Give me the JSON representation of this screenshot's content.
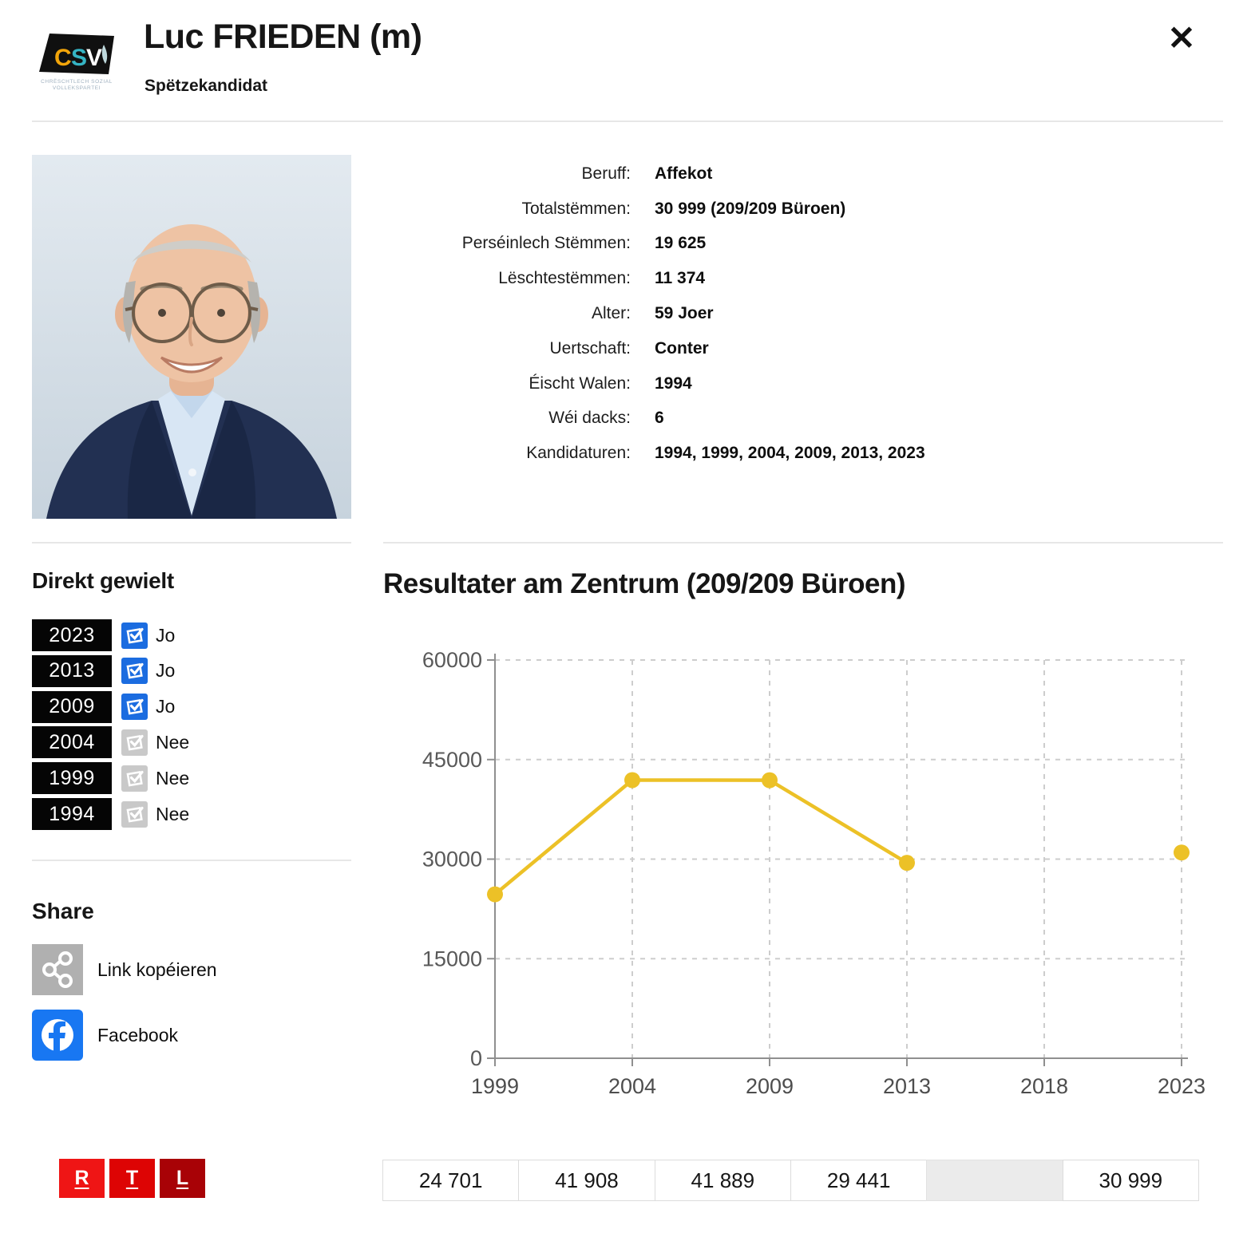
{
  "header": {
    "title": "Luc FRIEDEN (m)",
    "subtitle": "Spëtzekandidat",
    "close_glyph": "✕",
    "party": {
      "letters": [
        "C",
        "S",
        "V"
      ],
      "subtext_line1": "CHRËSCHTLECH SOZIAL",
      "subtext_line2": "VOLLEKSPARTEI",
      "colors": {
        "c": "#f2a50a",
        "s": "#35b4c4",
        "v": "#ffffff",
        "bg": "#101010"
      }
    }
  },
  "info": {
    "rows": [
      {
        "label": "Beruff:",
        "value": "Affekot"
      },
      {
        "label": "Totalstëmmen:",
        "value": "30 999 (209/209 Büroen)"
      },
      {
        "label": "Perséinlech Stëmmen:",
        "value": "19 625"
      },
      {
        "label": "Lëschtestëmmen:",
        "value": "11 374"
      },
      {
        "label": "Alter:",
        "value": "59 Joer"
      },
      {
        "label": "Uertschaft:",
        "value": "Conter"
      },
      {
        "label": "Éischt Walen:",
        "value": "1994"
      },
      {
        "label": "Wéi dacks:",
        "value": "6"
      },
      {
        "label": "Kandidaturen:",
        "value": "1994, 1999, 2004, 2009, 2013, 2023"
      }
    ]
  },
  "direkt": {
    "heading": "Direkt gewielt",
    "yes_color": "#1b6ce0",
    "no_color": "#c9c9c9",
    "rows": [
      {
        "year": "2023",
        "elected": true,
        "label": "Jo"
      },
      {
        "year": "2013",
        "elected": true,
        "label": "Jo"
      },
      {
        "year": "2009",
        "elected": true,
        "label": "Jo"
      },
      {
        "year": "2004",
        "elected": false,
        "label": "Nee"
      },
      {
        "year": "1999",
        "elected": false,
        "label": "Nee"
      },
      {
        "year": "1994",
        "elected": false,
        "label": "Nee"
      }
    ]
  },
  "share": {
    "heading": "Share",
    "items": [
      {
        "label": "Link kopéieren",
        "icon": "link-share-icon",
        "color": "#b0b0b0"
      },
      {
        "label": "Facebook",
        "icon": "facebook-icon",
        "color": "#1877F2"
      }
    ]
  },
  "brand": {
    "rtl": {
      "letters": [
        "R",
        "T",
        "L"
      ],
      "colors": [
        "#ef1515",
        "#dd0404",
        "#a80206"
      ]
    }
  },
  "chart_data": {
    "type": "line",
    "title": "Resultater am Zentrum (209/209 Büroen)",
    "categories": [
      "1999",
      "2004",
      "2009",
      "2013",
      "2018",
      "2023"
    ],
    "series": [
      {
        "name": "Totalstëmmen",
        "values": [
          24701,
          41908,
          41889,
          29441,
          null,
          30999
        ]
      }
    ],
    "ylim": [
      0,
      60000
    ],
    "yticks": [
      0,
      15000,
      30000,
      45000,
      60000
    ],
    "grid": true,
    "legend": "none",
    "line_color": "#ecc127",
    "table_values": [
      "24 701",
      "41 908",
      "41 889",
      "29 441",
      "",
      "30 999"
    ]
  }
}
